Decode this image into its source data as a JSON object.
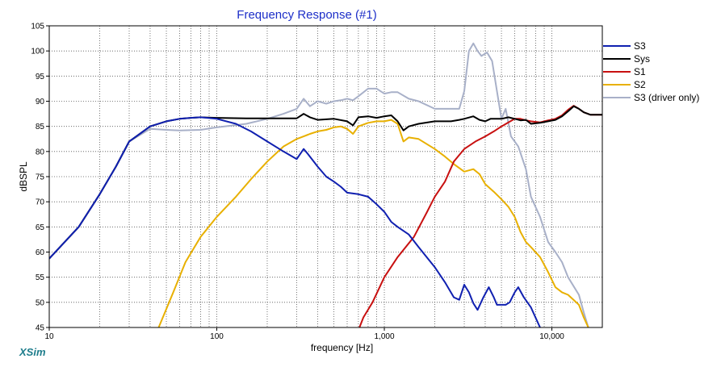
{
  "app": {
    "brand": "XSim"
  },
  "chart_data": {
    "type": "line",
    "title": "Frequency Response (#1)",
    "xlabel": "frequency [Hz]",
    "ylabel": "dBSPL",
    "xscale": "log",
    "xlim": [
      10,
      20000
    ],
    "ylim": [
      45,
      105
    ],
    "grid": true,
    "legend_position": "right",
    "x_tick_labels": [
      {
        "value": 10,
        "label": "10"
      },
      {
        "value": 100,
        "label": "100"
      },
      {
        "value": 1000,
        "label": "1,000"
      },
      {
        "value": 10000,
        "label": "10,000"
      }
    ],
    "y_ticks": [
      45,
      50,
      55,
      60,
      65,
      70,
      75,
      80,
      85,
      90,
      95,
      100,
      105
    ],
    "series": [
      {
        "name": "S3",
        "color": "#1020b0",
        "points": [
          [
            10,
            58.7
          ],
          [
            15,
            65
          ],
          [
            20,
            71.5
          ],
          [
            25,
            77
          ],
          [
            30,
            82
          ],
          [
            40,
            85
          ],
          [
            50,
            86
          ],
          [
            60,
            86.5
          ],
          [
            70,
            86.7
          ],
          [
            80,
            86.8
          ],
          [
            100,
            86.5
          ],
          [
            130,
            85.5
          ],
          [
            160,
            84
          ],
          [
            200,
            82
          ],
          [
            250,
            80
          ],
          [
            300,
            78.5
          ],
          [
            330,
            80.5
          ],
          [
            350,
            79.5
          ],
          [
            400,
            77
          ],
          [
            450,
            75
          ],
          [
            500,
            74
          ],
          [
            550,
            73
          ],
          [
            600,
            71.8
          ],
          [
            700,
            71.5
          ],
          [
            800,
            71
          ],
          [
            900,
            69.5
          ],
          [
            1000,
            68
          ],
          [
            1100,
            66
          ],
          [
            1200,
            65
          ],
          [
            1400,
            63.5
          ],
          [
            1600,
            61
          ],
          [
            2000,
            57
          ],
          [
            2300,
            54
          ],
          [
            2600,
            51
          ],
          [
            2800,
            50.5
          ],
          [
            3000,
            53.5
          ],
          [
            3200,
            52
          ],
          [
            3400,
            49.8
          ],
          [
            3600,
            48.5
          ],
          [
            3900,
            51
          ],
          [
            4200,
            53
          ],
          [
            4500,
            51
          ],
          [
            4700,
            49.5
          ],
          [
            5000,
            49.5
          ],
          [
            5300,
            49.5
          ],
          [
            5600,
            50
          ],
          [
            6000,
            52
          ],
          [
            6300,
            53
          ],
          [
            6800,
            51
          ],
          [
            7500,
            49
          ],
          [
            8500,
            45
          ]
        ]
      },
      {
        "name": "Sys",
        "color": "#000000",
        "points": [
          [
            10,
            58.7
          ],
          [
            15,
            65
          ],
          [
            20,
            71.5
          ],
          [
            25,
            77
          ],
          [
            30,
            82
          ],
          [
            40,
            85
          ],
          [
            50,
            86
          ],
          [
            60,
            86.5
          ],
          [
            70,
            86.7
          ],
          [
            80,
            86.8
          ],
          [
            100,
            86.7
          ],
          [
            150,
            86.6
          ],
          [
            200,
            86.6
          ],
          [
            300,
            86.6
          ],
          [
            330,
            87.5
          ],
          [
            360,
            86.8
          ],
          [
            400,
            86.3
          ],
          [
            500,
            86.5
          ],
          [
            600,
            86
          ],
          [
            650,
            85.2
          ],
          [
            700,
            86.8
          ],
          [
            800,
            87
          ],
          [
            900,
            86.7
          ],
          [
            1000,
            87
          ],
          [
            1100,
            87.2
          ],
          [
            1200,
            86
          ],
          [
            1300,
            84.2
          ],
          [
            1400,
            85
          ],
          [
            1600,
            85.5
          ],
          [
            2000,
            86
          ],
          [
            2500,
            86
          ],
          [
            2800,
            86.3
          ],
          [
            3000,
            86.5
          ],
          [
            3400,
            87
          ],
          [
            3700,
            86.3
          ],
          [
            4000,
            86
          ],
          [
            4300,
            86.5
          ],
          [
            5000,
            86.5
          ],
          [
            5500,
            86.8
          ],
          [
            6000,
            86.5
          ],
          [
            6500,
            86.2
          ],
          [
            7000,
            86.3
          ],
          [
            7500,
            85.5
          ],
          [
            8500,
            85.7
          ],
          [
            9500,
            86
          ],
          [
            10500,
            86.3
          ],
          [
            11500,
            87
          ],
          [
            12500,
            88
          ],
          [
            13500,
            89
          ],
          [
            14500,
            88.5
          ],
          [
            15500,
            87.8
          ],
          [
            17000,
            87.3
          ],
          [
            20000,
            87.3
          ]
        ]
      },
      {
        "name": "S1",
        "color": "#c81010",
        "points": [
          [
            710,
            45
          ],
          [
            750,
            47
          ],
          [
            850,
            50
          ],
          [
            1000,
            55
          ],
          [
            1200,
            59
          ],
          [
            1500,
            63
          ],
          [
            1800,
            68
          ],
          [
            2000,
            71
          ],
          [
            2300,
            74
          ],
          [
            2600,
            78
          ],
          [
            3000,
            80.5
          ],
          [
            3500,
            82
          ],
          [
            4000,
            83
          ],
          [
            4500,
            84
          ],
          [
            5000,
            85
          ],
          [
            5500,
            85.8
          ],
          [
            6000,
            86.5
          ],
          [
            6500,
            86.5
          ],
          [
            7000,
            86.2
          ],
          [
            7500,
            86
          ],
          [
            8500,
            85.8
          ],
          [
            9500,
            86.2
          ],
          [
            10500,
            86.5
          ],
          [
            11500,
            87.2
          ],
          [
            12500,
            88.3
          ],
          [
            13500,
            89.1
          ],
          [
            14500,
            88.5
          ],
          [
            15500,
            87.8
          ],
          [
            17000,
            87.3
          ],
          [
            20000,
            87.3
          ]
        ]
      },
      {
        "name": "S2",
        "color": "#e8b000",
        "points": [
          [
            45,
            45
          ],
          [
            55,
            52
          ],
          [
            65,
            58
          ],
          [
            80,
            63
          ],
          [
            100,
            67
          ],
          [
            130,
            71
          ],
          [
            160,
            74.5
          ],
          [
            200,
            78
          ],
          [
            250,
            81
          ],
          [
            300,
            82.5
          ],
          [
            330,
            83
          ],
          [
            360,
            83.5
          ],
          [
            400,
            84
          ],
          [
            450,
            84.3
          ],
          [
            500,
            84.8
          ],
          [
            550,
            85
          ],
          [
            600,
            84.5
          ],
          [
            650,
            83.5
          ],
          [
            700,
            85
          ],
          [
            800,
            85.7
          ],
          [
            900,
            86
          ],
          [
            1000,
            86
          ],
          [
            1100,
            86.3
          ],
          [
            1200,
            85.5
          ],
          [
            1300,
            82
          ],
          [
            1400,
            82.8
          ],
          [
            1600,
            82.5
          ],
          [
            2000,
            80.5
          ],
          [
            2300,
            79
          ],
          [
            2600,
            77.5
          ],
          [
            3000,
            76
          ],
          [
            3400,
            76.5
          ],
          [
            3700,
            75.5
          ],
          [
            4000,
            73.5
          ],
          [
            4500,
            72
          ],
          [
            5000,
            70.5
          ],
          [
            5500,
            69
          ],
          [
            6000,
            67
          ],
          [
            6500,
            64
          ],
          [
            7000,
            62
          ],
          [
            7500,
            61
          ],
          [
            8500,
            59
          ],
          [
            9500,
            56
          ],
          [
            10500,
            53
          ],
          [
            11500,
            52
          ],
          [
            12500,
            51.5
          ],
          [
            14500,
            49.5
          ],
          [
            15500,
            47
          ],
          [
            16500,
            45
          ]
        ]
      },
      {
        "name": "S3 (driver only)",
        "color": "#a8b0c8",
        "points": [
          [
            10,
            58.7
          ],
          [
            15,
            65
          ],
          [
            20,
            71.5
          ],
          [
            25,
            77
          ],
          [
            30,
            82
          ],
          [
            40,
            84.5
          ],
          [
            50,
            84.3
          ],
          [
            60,
            84.2
          ],
          [
            80,
            84.3
          ],
          [
            100,
            84.8
          ],
          [
            150,
            85.5
          ],
          [
            200,
            86.5
          ],
          [
            250,
            87.5
          ],
          [
            300,
            88.5
          ],
          [
            330,
            90.5
          ],
          [
            360,
            89
          ],
          [
            400,
            90
          ],
          [
            450,
            89.5
          ],
          [
            500,
            90
          ],
          [
            550,
            90.2
          ],
          [
            600,
            90.5
          ],
          [
            650,
            90.2
          ],
          [
            700,
            91
          ],
          [
            800,
            92.5
          ],
          [
            900,
            92.5
          ],
          [
            1000,
            91.5
          ],
          [
            1100,
            91.8
          ],
          [
            1200,
            91.8
          ],
          [
            1400,
            90.5
          ],
          [
            1600,
            90
          ],
          [
            2000,
            88.5
          ],
          [
            2500,
            88.5
          ],
          [
            2800,
            88.5
          ],
          [
            3000,
            92
          ],
          [
            3200,
            100
          ],
          [
            3400,
            101.5
          ],
          [
            3600,
            100
          ],
          [
            3800,
            99
          ],
          [
            4100,
            99.7
          ],
          [
            4400,
            98
          ],
          [
            4700,
            92
          ],
          [
            5000,
            86.5
          ],
          [
            5300,
            88.5
          ],
          [
            5700,
            83
          ],
          [
            6300,
            81
          ],
          [
            7000,
            76.5
          ],
          [
            7500,
            71
          ],
          [
            8500,
            67
          ],
          [
            9500,
            62
          ],
          [
            10500,
            60
          ],
          [
            11500,
            58
          ],
          [
            12500,
            55
          ],
          [
            14500,
            51.5
          ],
          [
            15500,
            48
          ],
          [
            16500,
            45
          ]
        ]
      }
    ]
  }
}
